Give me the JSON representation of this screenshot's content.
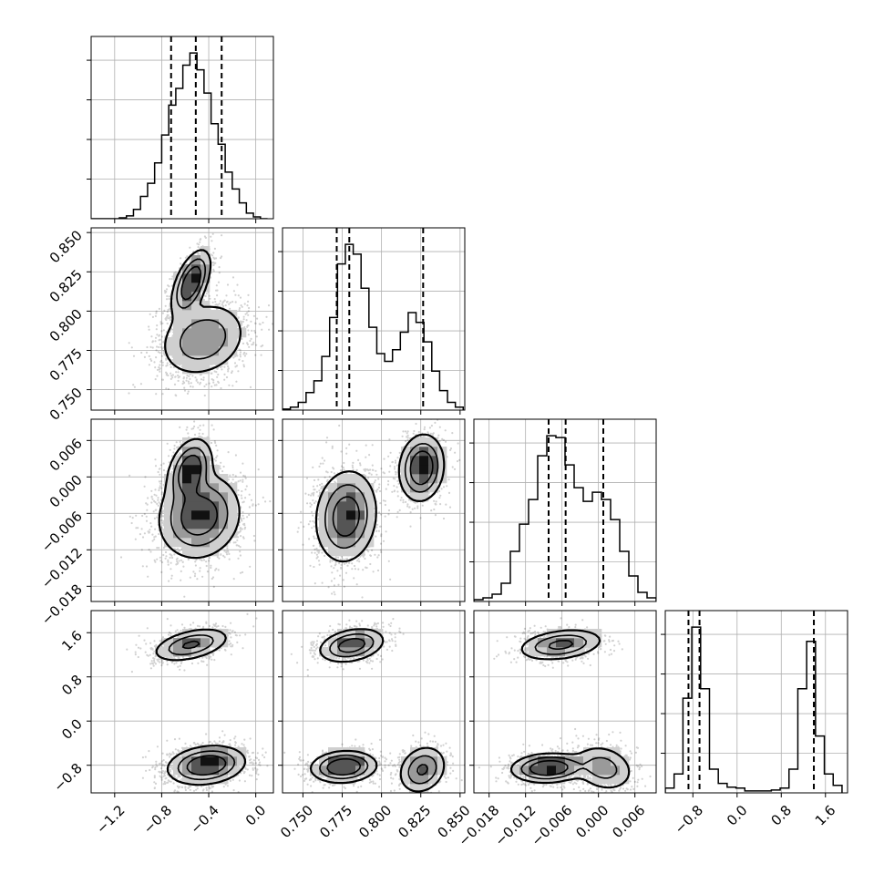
{
  "chart_data": {
    "type": "scatter",
    "variant": "corner-plot",
    "n_params": 4,
    "grid": true,
    "title": "",
    "axis_labels": [
      "",
      "",
      "",
      ""
    ],
    "params": [
      {
        "range": [
          -1.4,
          0.15
        ],
        "ticks": [
          -1.2,
          -0.8,
          -0.4,
          0.0
        ],
        "tick_labels": [
          "−1.2",
          "−0.8",
          "−0.4",
          "0.0"
        ],
        "quantiles": [
          -0.72,
          -0.51,
          -0.29
        ],
        "hist": {
          "edges": [
            -1.4,
            -1.34,
            -1.28,
            -1.22,
            -1.16,
            -1.1,
            -1.04,
            -0.98,
            -0.92,
            -0.86,
            -0.8,
            -0.74,
            -0.68,
            -0.62,
            -0.56,
            -0.5,
            -0.44,
            -0.38,
            -0.32,
            -0.26,
            -0.2,
            -0.14,
            -0.08,
            -0.02,
            0.04,
            0.1
          ],
          "counts": [
            0,
            0,
            0,
            0,
            1,
            3,
            10,
            24,
            38,
            60,
            90,
            122,
            140,
            165,
            178,
            160,
            135,
            102,
            80,
            50,
            32,
            17,
            6,
            2,
            0
          ]
        }
      },
      {
        "range": [
          0.737,
          0.853
        ],
        "ticks": [
          0.75,
          0.775,
          0.8,
          0.825,
          0.85
        ],
        "tick_labels": [
          "0.750",
          "0.775",
          "0.800",
          "0.825",
          "0.850"
        ],
        "quantiles": [
          0.7715,
          0.7795,
          0.8265
        ],
        "hist": {
          "edges": [
            0.737,
            0.742,
            0.747,
            0.752,
            0.757,
            0.762,
            0.767,
            0.772,
            0.777,
            0.782,
            0.787,
            0.792,
            0.797,
            0.802,
            0.807,
            0.812,
            0.817,
            0.822,
            0.827,
            0.832,
            0.837,
            0.842,
            0.847,
            0.852
          ],
          "counts": [
            1,
            3,
            8,
            18,
            30,
            55,
            95,
            150,
            170,
            160,
            125,
            85,
            58,
            50,
            62,
            80,
            100,
            90,
            70,
            40,
            20,
            8,
            3
          ]
        }
      },
      {
        "range": [
          -0.0205,
          0.0095
        ],
        "ticks": [
          -0.018,
          -0.012,
          -0.006,
          0.0,
          0.006
        ],
        "tick_labels": [
          "−0.018",
          "−0.012",
          "−0.006",
          "0.000",
          "0.006"
        ],
        "quantiles": [
          -0.0082,
          -0.0054,
          0.0008
        ],
        "hist": {
          "edges": [
            -0.0205,
            -0.019,
            -0.0175,
            -0.016,
            -0.0145,
            -0.013,
            -0.0115,
            -0.01,
            -0.0085,
            -0.007,
            -0.0055,
            -0.004,
            -0.0025,
            -0.001,
            0.0005,
            0.002,
            0.0035,
            0.005,
            0.0065,
            0.008,
            0.0095
          ],
          "counts": [
            2,
            4,
            8,
            20,
            55,
            85,
            112,
            160,
            182,
            180,
            150,
            125,
            110,
            120,
            112,
            90,
            55,
            28,
            10,
            4
          ]
        }
      },
      {
        "range": [
          -1.3,
          2.0
        ],
        "ticks": [
          -0.8,
          0.0,
          0.8,
          1.6
        ],
        "tick_labels": [
          "−0.8",
          "0.0",
          "0.8",
          "1.6"
        ],
        "quantiles": [
          -0.88,
          -0.68,
          1.39
        ],
        "hist": {
          "edges": [
            -1.3,
            -1.14,
            -0.98,
            -0.82,
            -0.66,
            -0.5,
            -0.34,
            -0.18,
            -0.02,
            0.14,
            0.3,
            0.46,
            0.62,
            0.78,
            0.94,
            1.1,
            1.26,
            1.42,
            1.58,
            1.74,
            1.9
          ],
          "counts": [
            5,
            20,
            100,
            175,
            110,
            25,
            10,
            6,
            5,
            2,
            2,
            2,
            3,
            5,
            25,
            110,
            160,
            60,
            20,
            8
          ]
        }
      }
    ],
    "pairs": [
      {
        "x": 0,
        "y": 1,
        "blobs": [
          {
            "mx": -0.55,
            "my": 0.818,
            "sx": 0.075,
            "sy": 0.0095,
            "rho": 0.55,
            "w": 0.38
          },
          {
            "mx": -0.45,
            "my": 0.782,
            "sx": 0.17,
            "sy": 0.011,
            "rho": 0.2,
            "w": 0.62
          }
        ]
      },
      {
        "x": 0,
        "y": 2,
        "blobs": [
          {
            "mx": -0.56,
            "my": 0.001,
            "sx": 0.085,
            "sy": 0.0024,
            "rho": 0.3,
            "w": 0.3
          },
          {
            "mx": -0.48,
            "my": -0.0065,
            "sx": 0.16,
            "sy": 0.0032,
            "rho": 0.1,
            "w": 0.7
          }
        ]
      },
      {
        "x": 1,
        "y": 2,
        "blobs": [
          {
            "mx": 0.7775,
            "my": -0.0065,
            "sx": 0.009,
            "sy": 0.0035,
            "rho": 0.1,
            "w": 0.62
          },
          {
            "mx": 0.8255,
            "my": 0.0015,
            "sx": 0.0065,
            "sy": 0.0025,
            "rho": 0.1,
            "w": 0.38
          }
        ]
      },
      {
        "x": 0,
        "y": 3,
        "blobs": [
          {
            "mx": -0.55,
            "my": 1.38,
            "sx": 0.15,
            "sy": 0.14,
            "rho": 0.45,
            "w": 0.33
          },
          {
            "mx": -0.42,
            "my": -0.8,
            "sx": 0.15,
            "sy": 0.16,
            "rho": 0.2,
            "w": 0.67
          }
        ]
      },
      {
        "x": 1,
        "y": 3,
        "blobs": [
          {
            "mx": 0.781,
            "my": 1.37,
            "sx": 0.0095,
            "sy": 0.14,
            "rho": 0.3,
            "w": 0.33
          },
          {
            "mx": 0.776,
            "my": -0.83,
            "sx": 0.0095,
            "sy": 0.13,
            "rho": 0.1,
            "w": 0.4
          },
          {
            "mx": 0.826,
            "my": -0.88,
            "sx": 0.007,
            "sy": 0.2,
            "rho": 0.2,
            "w": 0.27
          }
        ]
      },
      {
        "x": 2,
        "y": 3,
        "blobs": [
          {
            "mx": -0.0062,
            "my": 1.38,
            "sx": 0.0032,
            "sy": 0.13,
            "rho": 0.3,
            "w": 0.33
          },
          {
            "mx": -0.0082,
            "my": -0.85,
            "sx": 0.0028,
            "sy": 0.12,
            "rho": 0.1,
            "w": 0.42
          },
          {
            "mx": 0.0008,
            "my": -0.85,
            "sx": 0.0024,
            "sy": 0.2,
            "rho": -0.2,
            "w": 0.25
          }
        ]
      }
    ]
  }
}
